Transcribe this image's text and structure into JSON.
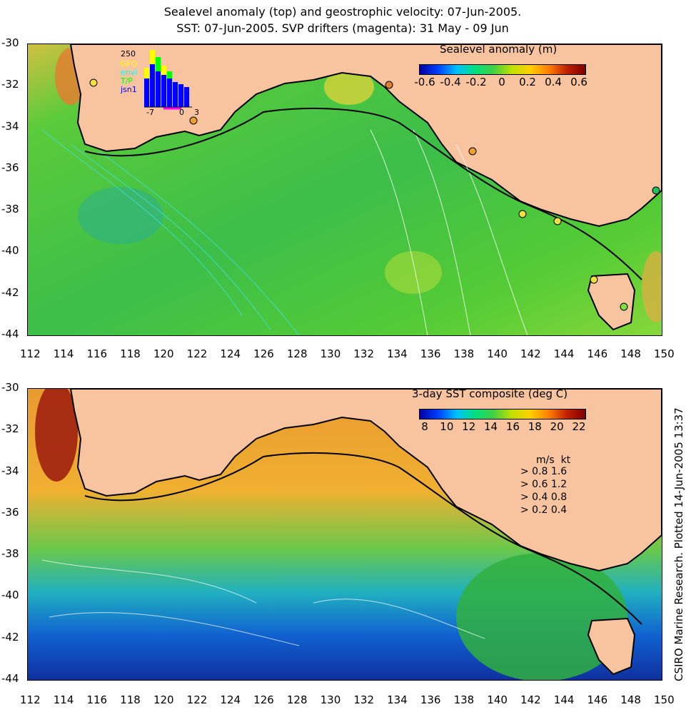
{
  "title_line1": "Sealevel anomaly (top) and geostrophic velocity: 07-Jun-2005.",
  "title_line2": "SST: 07-Jun-2005. SVP drifters (magenta): 31 May - 09 Jun",
  "x_ticks": [
    "112",
    "114",
    "116",
    "118",
    "120",
    "122",
    "124",
    "126",
    "128",
    "130",
    "132",
    "134",
    "136",
    "138",
    "140",
    "142",
    "144",
    "146",
    "148",
    "150"
  ],
  "y_ticks": [
    "-30",
    "-32",
    "-34",
    "-36",
    "-38",
    "-40",
    "-42",
    "-44"
  ],
  "top_panel": {
    "colorbar_title": "Sealevel anomaly (m)",
    "colorbar_ticks": [
      "-0.6",
      "-0.4",
      "-0.2",
      "0",
      "0.2",
      "0.4",
      "0.6"
    ],
    "inset": {
      "max_label": "250",
      "series": [
        "GFO",
        "envi",
        "T/P",
        "jsn1"
      ],
      "series_colors": [
        "#ffff00",
        "#00ffff",
        "#00ff00",
        "#0000ff"
      ],
      "x_labels": [
        "-7",
        "0",
        "3"
      ]
    }
  },
  "bottom_panel": {
    "colorbar_title": "3-day SST composite (deg C)",
    "colorbar_ticks": [
      "8",
      "10",
      "12",
      "14",
      "16",
      "18",
      "20",
      "22"
    ],
    "velocity_legend": {
      "header_ms": "m/s",
      "header_kt": "kt",
      "rows": [
        {
          "ms": "0.8",
          "kt": "1.6"
        },
        {
          "ms": "0.6",
          "kt": "1.2"
        },
        {
          "ms": "0.4",
          "kt": "0.8"
        },
        {
          "ms": "0.2",
          "kt": "0.4"
        }
      ]
    }
  },
  "credit": "CSIRO Marine Research. Plotted 14-Jun-2005 13:37",
  "colors": {
    "land": "#f8c49f",
    "sla_ocean": "#3fc63a",
    "sst_warm": "#f0a830",
    "sst_cool": "#1060d0"
  }
}
